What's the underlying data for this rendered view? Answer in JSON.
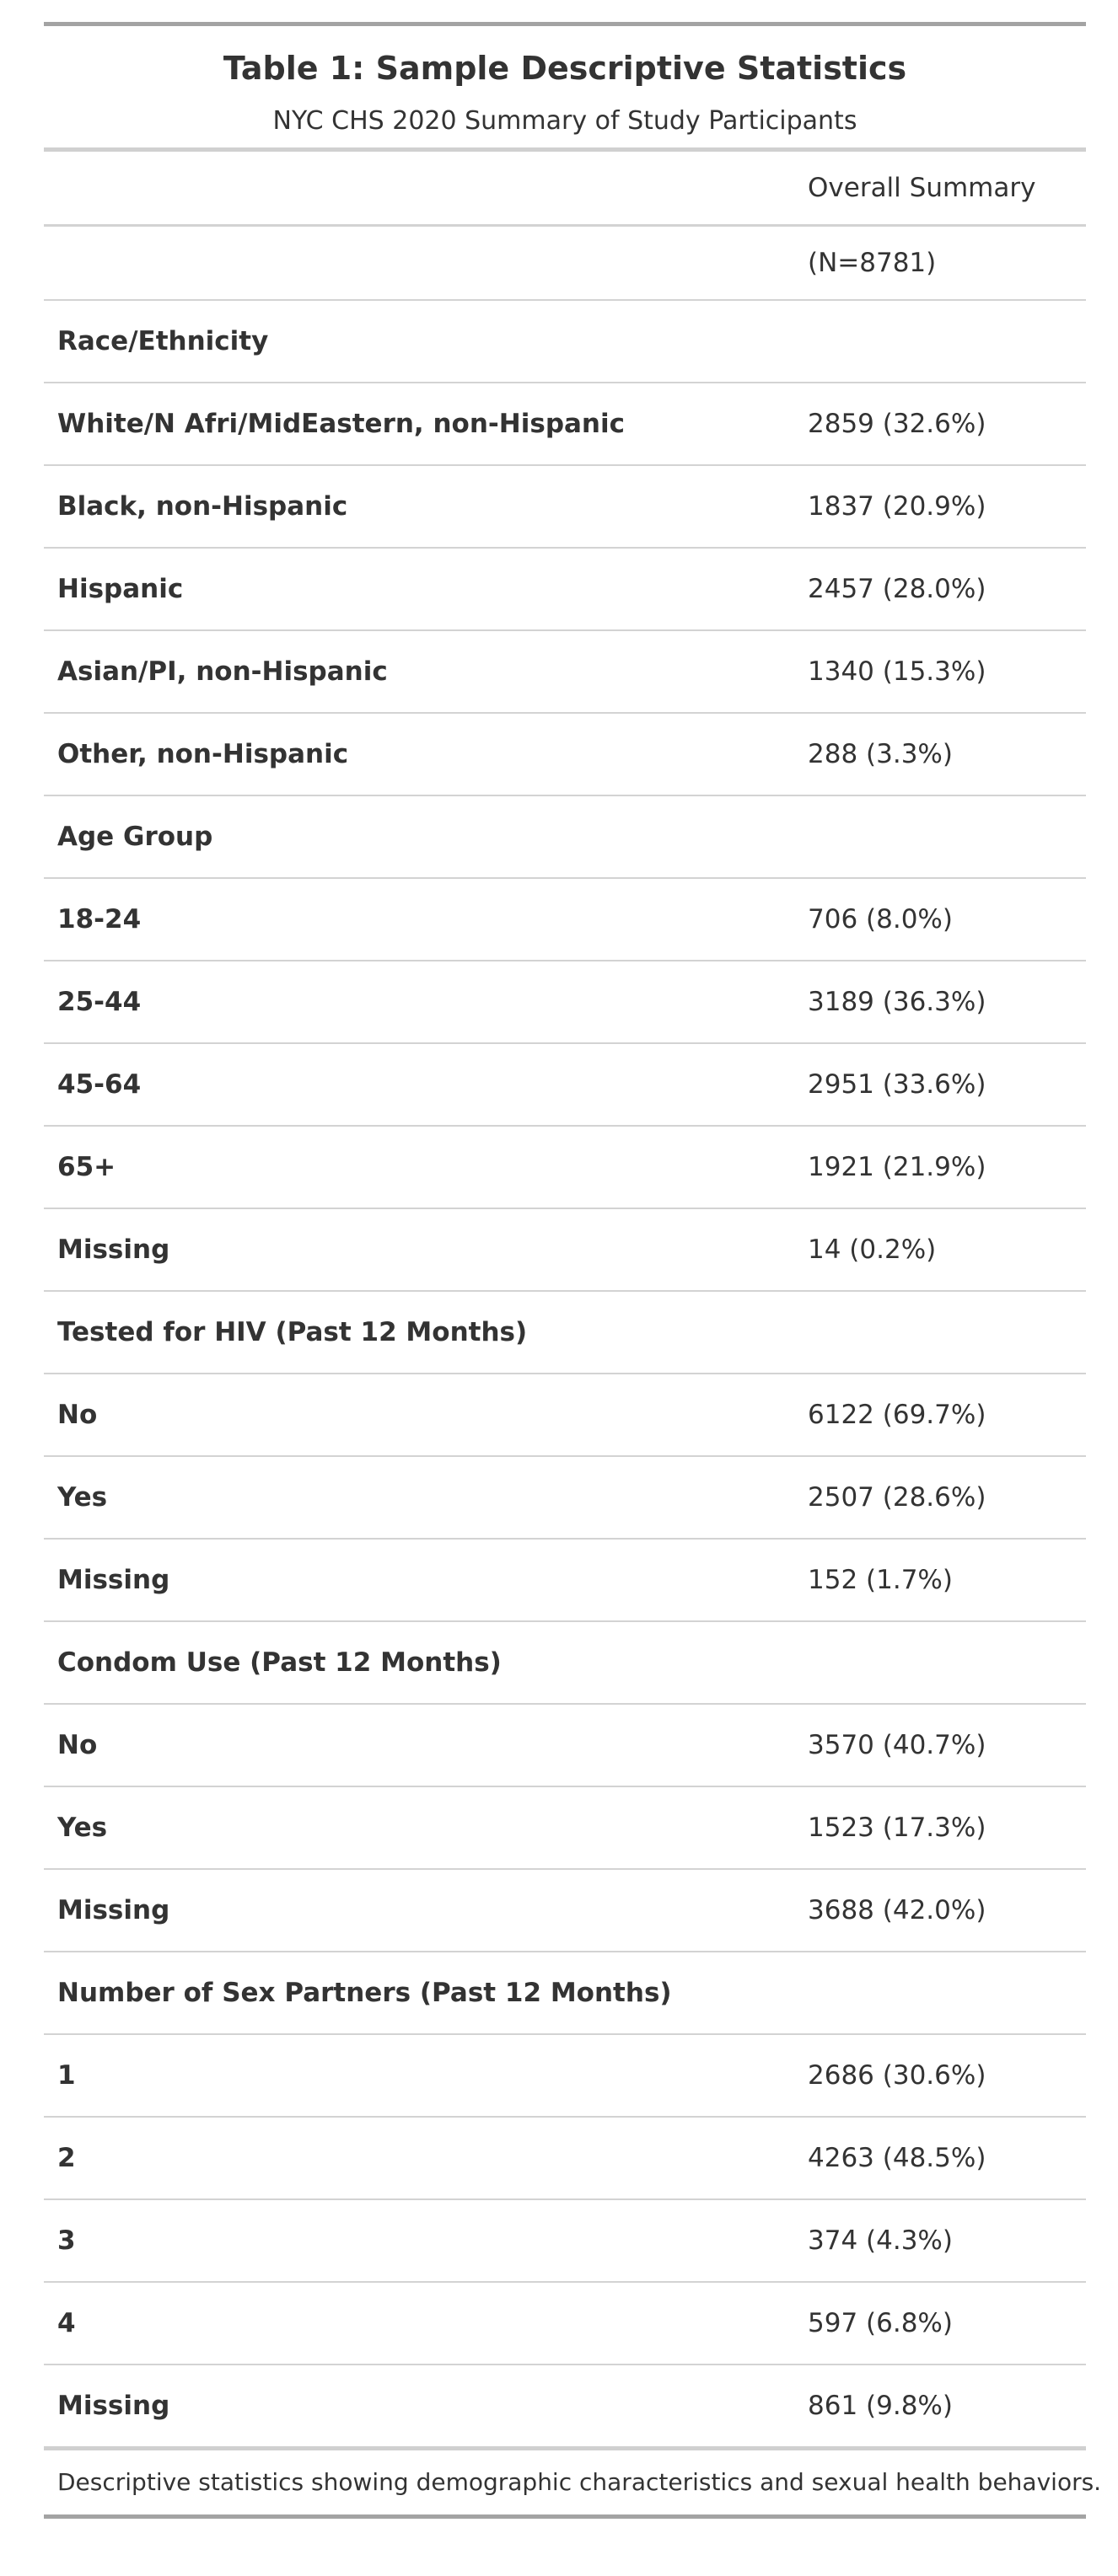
{
  "table": {
    "title": "Table 1: Sample Descriptive Statistics",
    "subtitle": "NYC CHS 2020 Summary of Study Participants",
    "column_header": "Overall Summary",
    "n_label": "(N=8781)",
    "rows": [
      {
        "label": "Race/Ethnicity",
        "value": ""
      },
      {
        "label": "White/N Afri/MidEastern, non-Hispanic",
        "value": "2859 (32.6%)"
      },
      {
        "label": "Black, non-Hispanic",
        "value": "1837 (20.9%)"
      },
      {
        "label": "Hispanic",
        "value": "2457 (28.0%)"
      },
      {
        "label": "Asian/PI, non-Hispanic",
        "value": "1340 (15.3%)"
      },
      {
        "label": "Other, non-Hispanic",
        "value": "288 (3.3%)"
      },
      {
        "label": "Age Group",
        "value": ""
      },
      {
        "label": "18-24",
        "value": "706 (8.0%)"
      },
      {
        "label": "25-44",
        "value": "3189 (36.3%)"
      },
      {
        "label": "45-64",
        "value": "2951 (33.6%)"
      },
      {
        "label": "65+",
        "value": "1921 (21.9%)"
      },
      {
        "label": "Missing",
        "value": "14 (0.2%)"
      },
      {
        "label": "Tested for HIV (Past 12 Months)",
        "value": ""
      },
      {
        "label": "No",
        "value": "6122 (69.7%)"
      },
      {
        "label": "Yes",
        "value": "2507 (28.6%)"
      },
      {
        "label": "Missing",
        "value": "152 (1.7%)"
      },
      {
        "label": "Condom Use (Past 12 Months)",
        "value": ""
      },
      {
        "label": "No",
        "value": "3570 (40.7%)"
      },
      {
        "label": "Yes",
        "value": "1523 (17.3%)"
      },
      {
        "label": "Missing",
        "value": "3688 (42.0%)"
      },
      {
        "label": "Number of Sex Partners (Past 12 Months)",
        "value": ""
      },
      {
        "label": "1",
        "value": "2686 (30.6%)"
      },
      {
        "label": "2",
        "value": "4263 (48.5%)"
      },
      {
        "label": "3",
        "value": "374 (4.3%)"
      },
      {
        "label": "4",
        "value": "597 (6.8%)"
      },
      {
        "label": "Missing",
        "value": "861 (9.8%)"
      }
    ],
    "footnote": "Descriptive statistics showing demographic characteristics and sexual health behaviors."
  }
}
